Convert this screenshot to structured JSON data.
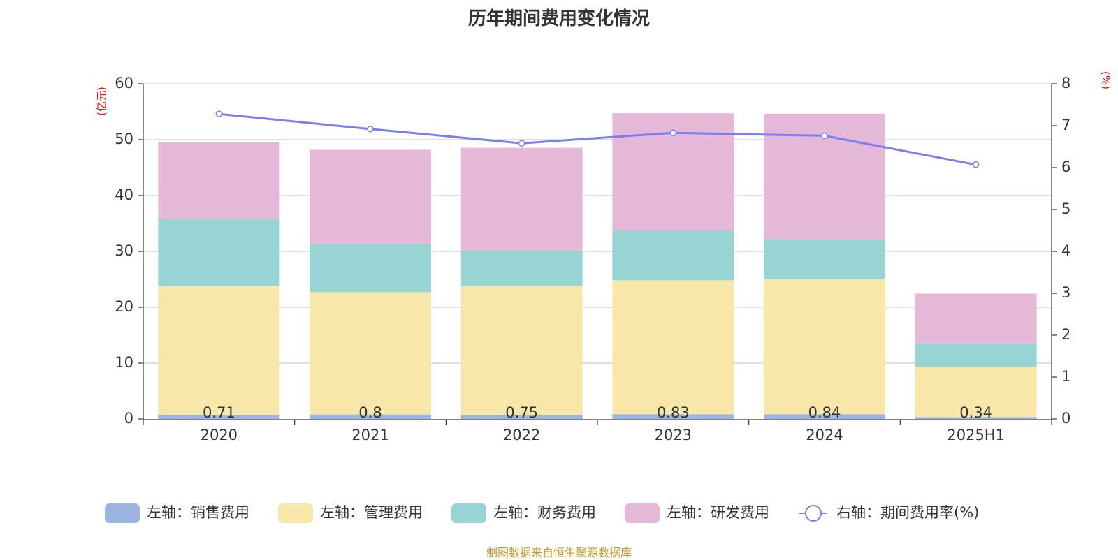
{
  "chart_data": {
    "type": "bar",
    "title": "历年期间费用变化情况",
    "categories": [
      "2020",
      "2021",
      "2022",
      "2023",
      "2024",
      "2025H1"
    ],
    "left_unit": "(亿元)",
    "right_unit": "(%)",
    "left_ylim": [
      0,
      60
    ],
    "left_ticks": [
      "0",
      "10",
      "20",
      "30",
      "40",
      "50",
      "60"
    ],
    "right_ylim": [
      0,
      8
    ],
    "right_ticks": [
      "0",
      "1",
      "2",
      "3",
      "4",
      "5",
      "6",
      "7",
      "8"
    ],
    "stacked": true,
    "grid": true,
    "legend_position": "bottom",
    "series": [
      {
        "name": "左轴：销售费用",
        "color": "#9bb5e0",
        "axis": "left",
        "values": [
          0.71,
          0.8,
          0.75,
          0.83,
          0.84,
          0.34
        ],
        "labels": [
          "0.71",
          "0.8",
          "0.75",
          "0.83",
          "0.84",
          "0.34"
        ]
      },
      {
        "name": "左轴：管理费用",
        "color": "#f7e7a8",
        "axis": "left",
        "values": [
          23.1,
          21.9,
          23.1,
          24.0,
          24.2,
          9.0
        ]
      },
      {
        "name": "左轴：财务费用",
        "color": "#98d4d4",
        "axis": "left",
        "values": [
          12.0,
          8.7,
          6.3,
          9.0,
          7.2,
          4.2
        ]
      },
      {
        "name": "左轴：研发费用",
        "color": "#e6b8d8",
        "axis": "left",
        "values": [
          13.7,
          16.8,
          18.4,
          20.9,
          22.4,
          8.9
        ]
      }
    ],
    "line_series": {
      "name": "右轴：期间费用率(%)",
      "color": "#7b7ef0",
      "axis": "right",
      "values": [
        7.28,
        6.92,
        6.58,
        6.83,
        6.76,
        6.07
      ]
    }
  },
  "source_text": "制图数据来自恒生聚源数据库"
}
